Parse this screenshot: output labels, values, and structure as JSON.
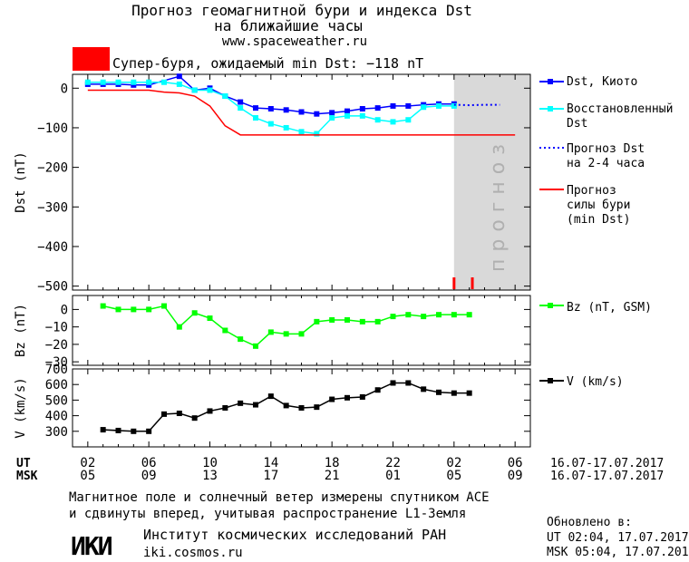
{
  "header": {
    "title_line1": "Прогноз геомагнитной бури и индекса Dst",
    "title_line2": "на ближайшие часы",
    "site": "www.spaceweather.ru",
    "storm_label": "Супер-буря, ожидаемый min Dst: −118 nT",
    "storm_color": "#ff0000"
  },
  "colors": {
    "dst_kyoto": "#0000ff",
    "dst_restored": "#00ffff",
    "forecast": "#0000ff",
    "storm": "#ff0000",
    "bz": "#00ff00",
    "v": "#000000",
    "forecast_zone": "#d9d9d9"
  },
  "chart_data": [
    {
      "type": "line",
      "ylabel": "Dst (nT)",
      "ylim": [
        -510,
        35
      ],
      "yticks": [
        0,
        -100,
        -200,
        -300,
        -400,
        -500
      ],
      "forecast_text": "прогноз",
      "series": [
        {
          "name": "Dst, Киото",
          "x": [
            2,
            3,
            4,
            5,
            6,
            7,
            8,
            9,
            10,
            11,
            12,
            13,
            14,
            15,
            16,
            17,
            18,
            19,
            20,
            21,
            22,
            23,
            24,
            25,
            26
          ],
          "y": [
            10,
            10,
            10,
            8,
            8,
            null,
            30,
            -5,
            0,
            -20,
            -35,
            -50,
            -52,
            -55,
            -60,
            -65,
            -62,
            -58,
            -52,
            -50,
            -45,
            -45,
            -42,
            -40,
            -40
          ]
        },
        {
          "name": "Восстановленный Dst",
          "x": [
            2,
            3,
            4,
            5,
            6,
            7,
            8,
            9,
            10,
            11,
            12,
            13,
            14,
            15,
            16,
            17,
            18,
            19,
            20,
            21,
            22,
            23,
            24,
            25,
            26
          ],
          "y": [
            15,
            15,
            15,
            15,
            15,
            15,
            10,
            -5,
            -5,
            -20,
            -50,
            -75,
            -90,
            -100,
            -110,
            -115,
            -75,
            -70,
            -70,
            -80,
            -85,
            -80,
            -48,
            -45,
            -45
          ]
        },
        {
          "name": "Прогноз Dst на 2–4 часа",
          "x": [
            26,
            27,
            28,
            29
          ],
          "y": [
            -42,
            -43,
            -42,
            -42
          ]
        },
        {
          "name": "Прогноз силы бури (min Dst)",
          "x": [
            2,
            6,
            7,
            8,
            9,
            10,
            11,
            12,
            13,
            14,
            15,
            16,
            17,
            18,
            19,
            20,
            21,
            22,
            23,
            24,
            25,
            26,
            27,
            28,
            29,
            30
          ],
          "y": [
            -5,
            -5,
            -10,
            -12,
            -20,
            -45,
            -95,
            -118,
            -118,
            -118,
            -118,
            -118,
            -118,
            -118,
            -118,
            -118,
            -118,
            -118,
            -118,
            -118,
            -118,
            -118,
            -118,
            -118,
            -118,
            -118
          ]
        }
      ],
      "forecast_marks_x": [
        26.0,
        27.2
      ]
    },
    {
      "type": "line",
      "ylabel": "Bz (nT)",
      "ylim": [
        -32,
        8
      ],
      "yticks": [
        0,
        -10,
        -20,
        -30
      ],
      "series": [
        {
          "name": "Bz (nT, GSM)",
          "x": [
            3,
            4,
            5,
            6,
            7,
            8,
            9,
            10,
            11,
            12,
            13,
            14,
            15,
            16,
            17,
            18,
            19,
            20,
            21,
            22,
            23,
            24,
            25,
            26,
            27
          ],
          "y": [
            2,
            0,
            0,
            0,
            2,
            -10,
            -2,
            -5,
            -12,
            -17,
            -21,
            -13,
            -14,
            -14,
            -7,
            -6,
            -6,
            -7,
            -7,
            -4,
            -3,
            -4,
            -3,
            -3,
            -3
          ]
        }
      ]
    },
    {
      "type": "line",
      "ylabel": "V (km/s)",
      "ylim": [
        200,
        700
      ],
      "yticks": [
        700,
        600,
        500,
        400,
        300
      ],
      "series": [
        {
          "name": "V (km/s)",
          "x": [
            3,
            4,
            5,
            6,
            7,
            8,
            9,
            10,
            11,
            12,
            13,
            14,
            15,
            16,
            17,
            18,
            19,
            20,
            21,
            22,
            23,
            24,
            25,
            26,
            27
          ],
          "y": [
            310,
            305,
            300,
            300,
            410,
            415,
            385,
            430,
            450,
            480,
            470,
            525,
            465,
            450,
            455,
            505,
            515,
            520,
            565,
            610,
            610,
            570,
            550,
            545,
            545
          ]
        }
      ]
    }
  ],
  "xaxis": {
    "ut_label": "UT",
    "msk_label": "MSK",
    "ut_ticks": [
      "02",
      "06",
      "10",
      "14",
      "18",
      "22",
      "02",
      "06"
    ],
    "msk_ticks": [
      "05",
      "09",
      "13",
      "17",
      "21",
      "01",
      "05",
      "09"
    ],
    "date_range_ut": "16.07-17.07.2017",
    "date_range_msk": "16.07-17.07.2017"
  },
  "legend": {
    "dst_kyoto": "Dst, Киото",
    "restored_1": "Восстановленный",
    "restored_2": "Dst",
    "forecast_1": "Прогноз Dst",
    "forecast_2": "на 2-4 часа",
    "storm_1": "Прогноз",
    "storm_2": "силы бури",
    "storm_3": "(min Dst)",
    "bz": "Bz (nT, GSM)",
    "v": "V (km/s)"
  },
  "footer": {
    "note_1": "Магнитное поле и солнечный ветер измерены спутником ACE",
    "note_2": "и сдвинуты вперед, учитывая распространение L1-Земля",
    "logo_text": "ИКИ",
    "institute": "Институт космических исследований РАН",
    "institute_url": "iki.cosmos.ru",
    "updated_label": "Обновлено в:",
    "updated_ut": "UT  02:04, 17.07.2017",
    "updated_msk": "MSK 05:04, 17.07.2017"
  }
}
